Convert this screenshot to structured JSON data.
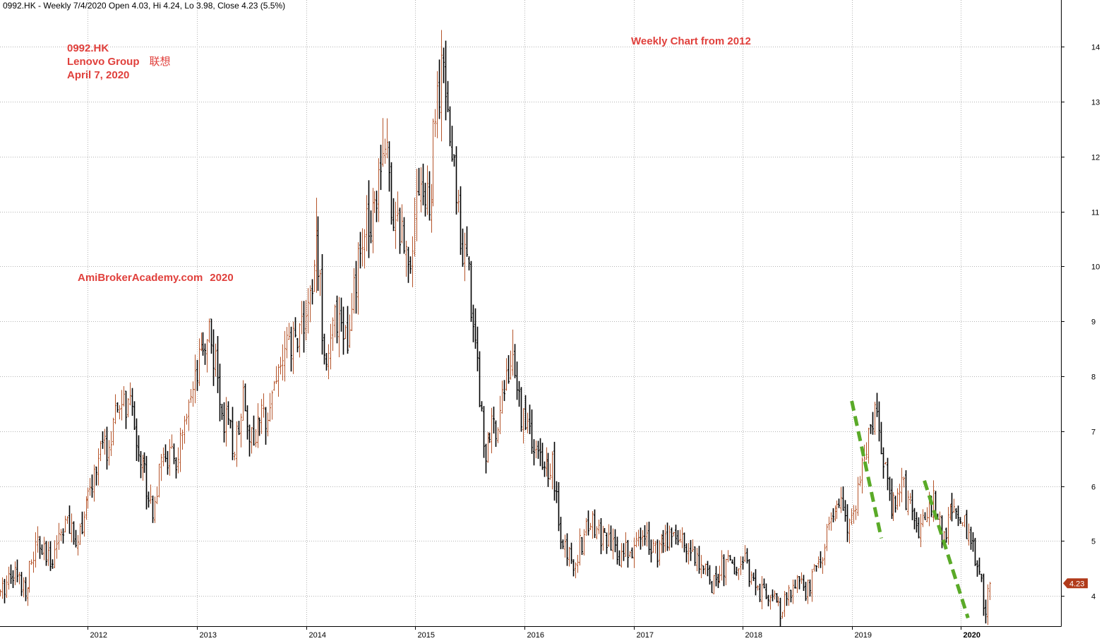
{
  "header": {
    "ticker": "0992.HK",
    "period": "Weekly",
    "date": "7/4/2020",
    "open": "4.03",
    "high": "4.24",
    "low": "3.98",
    "close": "4.23",
    "change": "(5.5%)"
  },
  "annotations": {
    "ticker": "0992.HK",
    "company": "Lenovo Group",
    "company_cn": "联想",
    "date": "April 7, 2020",
    "subtitle": "Weekly Chart from 2012",
    "watermark_site": "AmiBrokerAcademy.com",
    "watermark_year": "2020"
  },
  "colors": {
    "up_bar": "#b5542a",
    "down_bar": "#000000",
    "annotation_text": "#e0403c",
    "trendline": "#5aaa28",
    "grid": "#b4b4b4",
    "price_tag_bg": "#b13a1a",
    "price_tag_text": "#ffffff"
  },
  "chart_data": {
    "type": "candlestick",
    "frequency": "weekly",
    "y_axis": {
      "position": "right",
      "ticks": [
        4,
        5,
        6,
        7,
        8,
        9,
        10,
        11,
        12,
        13,
        14
      ],
      "range": [
        3.45,
        14.85
      ]
    },
    "x_axis": {
      "labels": [
        "2012",
        "2013",
        "2014",
        "2015",
        "2016",
        "2017",
        "2018",
        "2019",
        "2020"
      ],
      "range": [
        "2011-03-14",
        "2020-12-01"
      ]
    },
    "grid": true,
    "last_price": "4.23",
    "anchors": [
      [
        "2011-03-14",
        4.0
      ],
      [
        "2011-04-20",
        4.5
      ],
      [
        "2011-06-05",
        4.15
      ],
      [
        "2011-07-15",
        4.95
      ],
      [
        "2011-08-25",
        4.6
      ],
      [
        "2011-10-15",
        5.4
      ],
      [
        "2011-11-15",
        5.0
      ],
      [
        "2011-12-20",
        5.45
      ],
      [
        "2012-02-10",
        6.6
      ],
      [
        "2012-03-15",
        6.75
      ],
      [
        "2012-04-20",
        7.55
      ],
      [
        "2012-05-25",
        7.35
      ],
      [
        "2012-06-25",
        6.55
      ],
      [
        "2012-08-05",
        5.6
      ],
      [
        "2012-09-15",
        6.6
      ],
      [
        "2012-10-20",
        6.4
      ],
      [
        "2012-12-10",
        7.4
      ],
      [
        "2013-01-25",
        8.6
      ],
      [
        "2013-02-12",
        8.9
      ],
      [
        "2013-03-20",
        7.5
      ],
      [
        "2013-05-05",
        6.65
      ],
      [
        "2013-06-05",
        7.8
      ],
      [
        "2013-06-30",
        6.8
      ],
      [
        "2013-08-15",
        7.3
      ],
      [
        "2013-10-10",
        8.3
      ],
      [
        "2013-11-20",
        8.6
      ],
      [
        "2013-12-25",
        9.1
      ],
      [
        "2014-01-20",
        9.4
      ],
      [
        "2014-02-05",
        10.6
      ],
      [
        "2014-02-25",
        8.8
      ],
      [
        "2014-03-15",
        8.3
      ],
      [
        "2014-04-20",
        9.3
      ],
      [
        "2014-05-20",
        8.5
      ],
      [
        "2014-06-20",
        9.9
      ],
      [
        "2014-07-25",
        10.8
      ],
      [
        "2014-08-25",
        11.5
      ],
      [
        "2014-09-15",
        12.4
      ],
      [
        "2014-10-25",
        10.9
      ],
      [
        "2014-12-10",
        10.2
      ],
      [
        "2015-01-15",
        11.7
      ],
      [
        "2015-02-15",
        10.9
      ],
      [
        "2015-03-10",
        12.8
      ],
      [
        "2015-04-05",
        13.5
      ],
      [
        "2015-04-25",
        12.4
      ],
      [
        "2015-05-25",
        11.0
      ],
      [
        "2015-06-30",
        9.7
      ],
      [
        "2015-07-25",
        8.4
      ],
      [
        "2015-08-20",
        6.6
      ],
      [
        "2015-09-30",
        7.2
      ],
      [
        "2015-11-15",
        8.3
      ],
      [
        "2015-12-20",
        7.4
      ],
      [
        "2016-01-20",
        6.9
      ],
      [
        "2016-03-05",
        6.2
      ],
      [
        "2016-04-01",
        6.5
      ],
      [
        "2016-05-05",
        4.9
      ],
      [
        "2016-06-15",
        4.65
      ],
      [
        "2016-08-05",
        5.35
      ],
      [
        "2016-09-15",
        5.1
      ],
      [
        "2016-11-05",
        4.75
      ],
      [
        "2016-12-25",
        4.85
      ],
      [
        "2017-02-10",
        5.15
      ],
      [
        "2017-03-25",
        4.75
      ],
      [
        "2017-05-05",
        5.2
      ],
      [
        "2017-06-25",
        4.95
      ],
      [
        "2017-08-05",
        4.7
      ],
      [
        "2017-09-15",
        4.2
      ],
      [
        "2017-10-25",
        4.55
      ],
      [
        "2017-12-10",
        4.5
      ],
      [
        "2018-01-15",
        4.6
      ],
      [
        "2018-02-15",
        4.0
      ],
      [
        "2018-03-25",
        4.1
      ],
      [
        "2018-05-05",
        3.7
      ],
      [
        "2018-06-20",
        4.25
      ],
      [
        "2018-08-01",
        4.05
      ],
      [
        "2018-09-05",
        4.55
      ],
      [
        "2018-10-15",
        5.2
      ],
      [
        "2018-11-20",
        5.7
      ],
      [
        "2018-12-25",
        5.15
      ],
      [
        "2019-01-25",
        5.9
      ],
      [
        "2019-02-20",
        6.9
      ],
      [
        "2019-03-10",
        7.25
      ],
      [
        "2019-04-01",
        7.1
      ],
      [
        "2019-04-15",
        6.4
      ],
      [
        "2019-05-10",
        5.6
      ],
      [
        "2019-06-15",
        6.1
      ],
      [
        "2019-07-10",
        5.7
      ],
      [
        "2019-08-05",
        5.2
      ],
      [
        "2019-09-10",
        5.5
      ],
      [
        "2019-10-01",
        5.7
      ],
      [
        "2019-11-01",
        5.1
      ],
      [
        "2019-12-15",
        5.7
      ],
      [
        "2020-01-15",
        5.2
      ],
      [
        "2020-02-01",
        4.9
      ],
      [
        "2020-02-25",
        4.6
      ],
      [
        "2020-03-10",
        4.2
      ],
      [
        "2020-03-20",
        3.75
      ],
      [
        "2020-04-07",
        4.23
      ]
    ],
    "spikes": [
      [
        "2014-02-05",
        11.25
      ],
      [
        "2014-09-15",
        12.7
      ],
      [
        "2015-04-01",
        14.3
      ],
      [
        "2015-11-20",
        8.85
      ],
      [
        "2019-03-25",
        7.6
      ],
      [
        "2013-02-12",
        9.05
      ],
      [
        "2012-04-20",
        7.75
      ],
      [
        "2018-05-05",
        3.55
      ],
      [
        "2020-03-20",
        3.5
      ]
    ],
    "trendlines": [
      {
        "from": [
          "2019-01-01",
          7.55
        ],
        "to": [
          "2019-04-10",
          5.05
        ]
      },
      {
        "from": [
          "2019-09-01",
          6.1
        ],
        "to": [
          "2020-01-25",
          3.6
        ]
      }
    ]
  }
}
